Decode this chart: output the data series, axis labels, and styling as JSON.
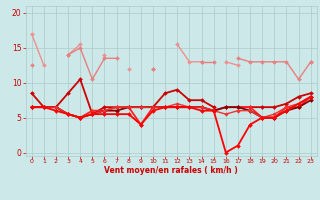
{
  "x": [
    0,
    1,
    2,
    3,
    4,
    5,
    6,
    7,
    8,
    9,
    10,
    11,
    12,
    13,
    14,
    15,
    16,
    17,
    18,
    19,
    20,
    21,
    22,
    23
  ],
  "lines": [
    {
      "y": [
        17,
        12.5,
        null,
        14,
        15.5,
        null,
        14,
        null,
        12,
        null,
        12,
        null,
        15.5,
        13,
        13,
        null,
        13,
        12.5,
        null,
        null,
        null,
        null,
        null,
        13
      ],
      "color": "#f09090",
      "lw": 1.0,
      "marker": "D",
      "ms": 2.0
    },
    {
      "y": [
        12.5,
        null,
        null,
        14,
        15,
        10.5,
        13.5,
        13.5,
        null,
        null,
        12,
        null,
        null,
        null,
        13,
        13,
        null,
        13.5,
        13,
        13,
        13,
        13,
        10.5,
        13
      ],
      "color": "#e88080",
      "lw": 1.0,
      "marker": "D",
      "ms": 2.0
    },
    {
      "y": [
        8.5,
        6.5,
        6.5,
        8.5,
        10.5,
        5.5,
        6.5,
        6.5,
        6.5,
        6.5,
        6.5,
        8.5,
        9.0,
        7.5,
        7.5,
        6.5,
        null,
        6.5,
        6.5,
        6.5,
        6.5,
        7.0,
        8.0,
        8.5
      ],
      "color": "#cc0000",
      "lw": 1.3,
      "marker": "D",
      "ms": 2.0
    },
    {
      "y": [
        6.5,
        6.5,
        6.5,
        5.5,
        5.0,
        6.0,
        6.0,
        6.5,
        6.5,
        4.0,
        6.5,
        6.5,
        6.5,
        6.5,
        6.5,
        6.0,
        6.5,
        6.5,
        6.5,
        5.0,
        5.0,
        6.5,
        6.5,
        8.0
      ],
      "color": "#ff2222",
      "lw": 1.3,
      "marker": "D",
      "ms": 2.0
    },
    {
      "y": [
        6.5,
        6.5,
        6.5,
        5.5,
        5.0,
        5.5,
        6.0,
        6.0,
        6.5,
        6.5,
        6.5,
        6.5,
        6.5,
        6.5,
        6.5,
        6.0,
        6.5,
        6.5,
        6.0,
        5.0,
        5.0,
        6.0,
        6.5,
        7.5
      ],
      "color": "#880000",
      "lw": 1.3,
      "marker": "D",
      "ms": 2.0
    },
    {
      "y": [
        6.5,
        6.5,
        6.5,
        5.5,
        5.0,
        5.5,
        6.0,
        6.5,
        6.5,
        6.5,
        6.5,
        6.5,
        7.0,
        6.5,
        6.5,
        6.0,
        5.5,
        6.0,
        6.0,
        5.0,
        5.5,
        6.5,
        7.0,
        8.0
      ],
      "color": "#ee3333",
      "lw": 1.0,
      "marker": "D",
      "ms": 1.8
    },
    {
      "y": [
        6.5,
        6.5,
        6.0,
        5.5,
        5.0,
        5.5,
        5.5,
        5.5,
        5.5,
        4.0,
        6.0,
        6.5,
        6.5,
        6.5,
        6.0,
        6.0,
        0.0,
        1.0,
        4.0,
        5.0,
        5.0,
        6.0,
        7.0,
        8.0
      ],
      "color": "#ff0000",
      "lw": 1.3,
      "marker": "D",
      "ms": 2.0
    }
  ],
  "bg_color": "#cce8e8",
  "grid_color": "#aacccc",
  "text_color": "#cc0000",
  "xlabel": "Vent moyen/en rafales ( km/h )",
  "xlim": [
    -0.5,
    23.5
  ],
  "ylim": [
    -0.5,
    21
  ],
  "yticks": [
    0,
    5,
    10,
    15,
    20
  ],
  "xticks": [
    0,
    1,
    2,
    3,
    4,
    5,
    6,
    7,
    8,
    9,
    10,
    11,
    12,
    13,
    14,
    15,
    16,
    17,
    18,
    19,
    20,
    21,
    22,
    23
  ],
  "xlabel_fontsize": 5.5,
  "tick_fontsize_x": 4.5,
  "tick_fontsize_y": 5.5
}
